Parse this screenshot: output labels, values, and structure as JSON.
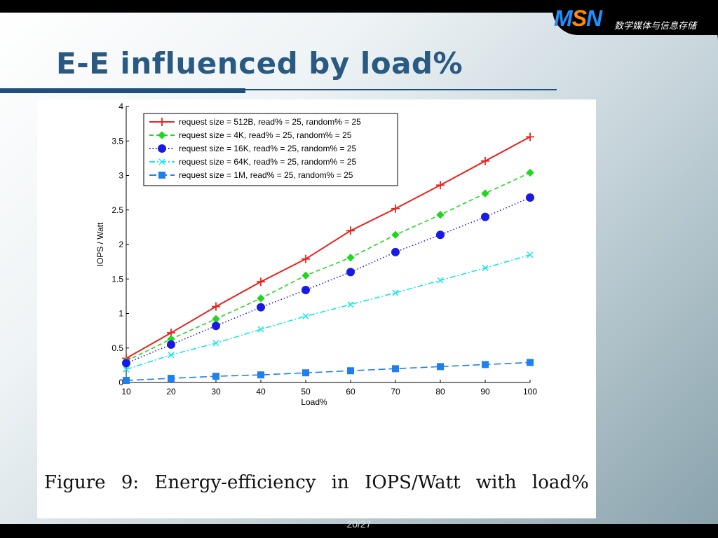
{
  "header": {
    "logo_m": "M",
    "logo_s": "S",
    "logo_n": "N",
    "logo_subtitle": "数学媒体与信息存储",
    "title": "E-E influenced by load%"
  },
  "figure": {
    "caption": "Figure 9:  Energy-efficiency in IOPS/Watt with load%"
  },
  "footer": {
    "page": "20/27"
  },
  "chart_data": {
    "type": "line",
    "xlabel": "Load%",
    "ylabel": "IOPS / Watt",
    "xlim": [
      10,
      100
    ],
    "ylim": [
      0,
      4
    ],
    "xticks": [
      10,
      20,
      30,
      40,
      50,
      60,
      70,
      80,
      90,
      100
    ],
    "yticks": [
      0,
      0.5,
      1,
      1.5,
      2,
      2.5,
      3,
      3.5,
      4
    ],
    "legend_position": "top-left",
    "x": [
      10,
      20,
      30,
      40,
      50,
      60,
      70,
      80,
      90,
      100
    ],
    "series": [
      {
        "name": "request size = 512B, read% = 25, random% = 25",
        "color": "#e8221c",
        "dash": "solid",
        "marker": "plus",
        "values": [
          0.35,
          0.72,
          1.1,
          1.46,
          1.79,
          2.2,
          2.52,
          2.86,
          3.21,
          3.56
        ]
      },
      {
        "name": "request size = 4K, read% = 25, random% = 25",
        "color": "#22d61f",
        "dash": "dashed",
        "marker": "diamond",
        "values": [
          0.31,
          0.63,
          0.92,
          1.22,
          1.55,
          1.81,
          2.14,
          2.43,
          2.74,
          3.04
        ]
      },
      {
        "name": "request size = 16K, read% = 25, random% = 25",
        "color": "#1a1ae6",
        "dash": "dotted",
        "marker": "circle",
        "values": [
          0.28,
          0.55,
          0.82,
          1.09,
          1.34,
          1.6,
          1.89,
          2.14,
          2.4,
          2.68
        ]
      },
      {
        "name": "request size = 64K, read% = 25, random% = 25",
        "color": "#19e6e6",
        "dash": "dashdot",
        "marker": "x",
        "values": [
          0.19,
          0.4,
          0.57,
          0.77,
          0.96,
          1.13,
          1.3,
          1.48,
          1.66,
          1.85
        ]
      },
      {
        "name": "request size = 1M, read% = 25, random% = 25",
        "color": "#1e7ff0",
        "dash": "longdash",
        "marker": "square",
        "values": [
          0.03,
          0.06,
          0.09,
          0.11,
          0.14,
          0.17,
          0.2,
          0.23,
          0.26,
          0.29
        ]
      }
    ]
  }
}
